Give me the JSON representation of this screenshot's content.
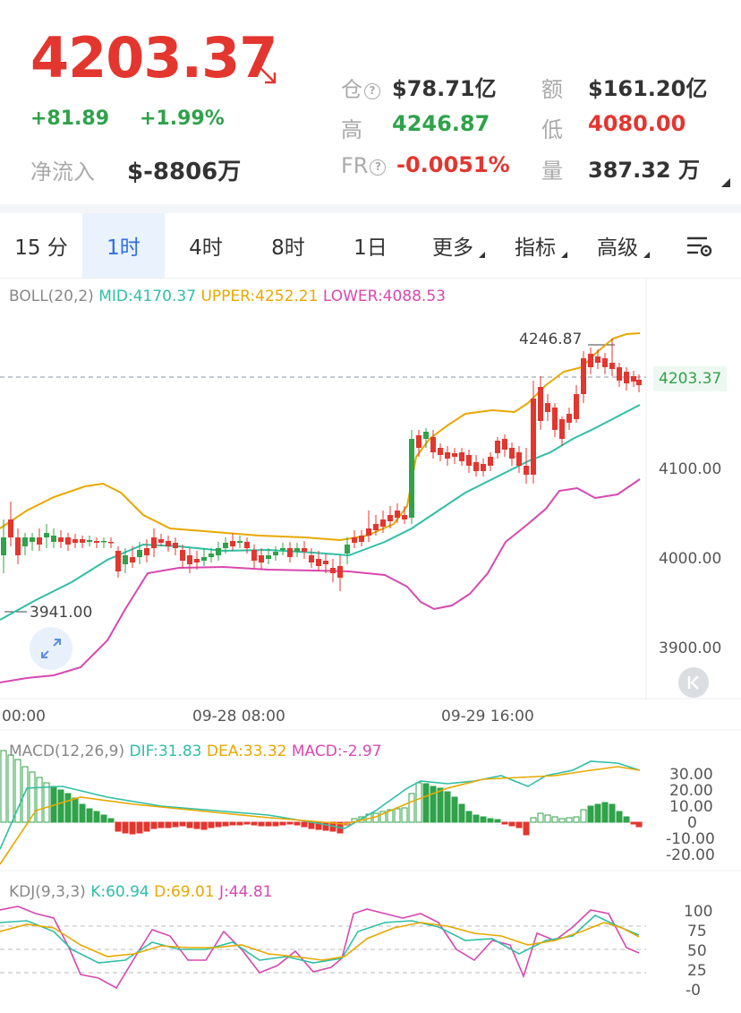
{
  "header": {
    "price": "4203.37",
    "change_abs": "+81.89",
    "change_pct": "+1.99%",
    "netflow_label": "净流入",
    "netflow_value": "$-8806万",
    "stats": {
      "oi_label": "仓",
      "oi_value": "$78.71亿",
      "turnover_label": "额",
      "turnover_value": "$161.20亿",
      "high_label": "高",
      "high_value": "4246.87",
      "low_label": "低",
      "low_value": "4080.00",
      "fr_label": "FR",
      "fr_value": "-0.0051%",
      "volume_label": "量",
      "volume_value": "387.32 万"
    },
    "colors": {
      "up": "#2fa24a",
      "down": "#e2362f"
    }
  },
  "tabs": [
    {
      "label": "15 分",
      "active": false
    },
    {
      "label": "1时",
      "active": true
    },
    {
      "label": "4时",
      "active": false
    },
    {
      "label": "8时",
      "active": false
    },
    {
      "label": "1日",
      "active": false
    },
    {
      "label": "更多",
      "active": false,
      "dropdown": true
    },
    {
      "label": "指标",
      "active": false,
      "dropdown": true
    },
    {
      "label": "高级",
      "active": false,
      "dropdown": true
    }
  ],
  "boll": {
    "name": "BOLL(20,2)",
    "mid": "MID:4170.37",
    "upper": "UPPER:4252.21",
    "lower": "LOWER:4088.53"
  },
  "main_chart": {
    "price_axis": [
      "4100.00",
      "4000.00",
      "3900.00"
    ],
    "current_price_tag": "4203.37",
    "high_annotation": "4246.87",
    "low_annotation": "3941.00",
    "time_axis": [
      "00:00",
      "09-28 08:00",
      "09-29 16:00"
    ]
  },
  "macd": {
    "name": "MACD(12,26,9)",
    "dif": "DIF:31.83",
    "dea": "DEA:33.32",
    "macd": "MACD:-2.97",
    "axis": [
      "30.00",
      "20.00",
      "10.00",
      "0",
      "-10.00",
      "-20.00"
    ]
  },
  "kdj": {
    "name": "KDJ(9,3,3)",
    "k": "K:60.94",
    "d": "D:69.01",
    "j": "J:44.81",
    "axis": [
      "100",
      "75",
      "50",
      "25",
      "-0"
    ]
  }
}
